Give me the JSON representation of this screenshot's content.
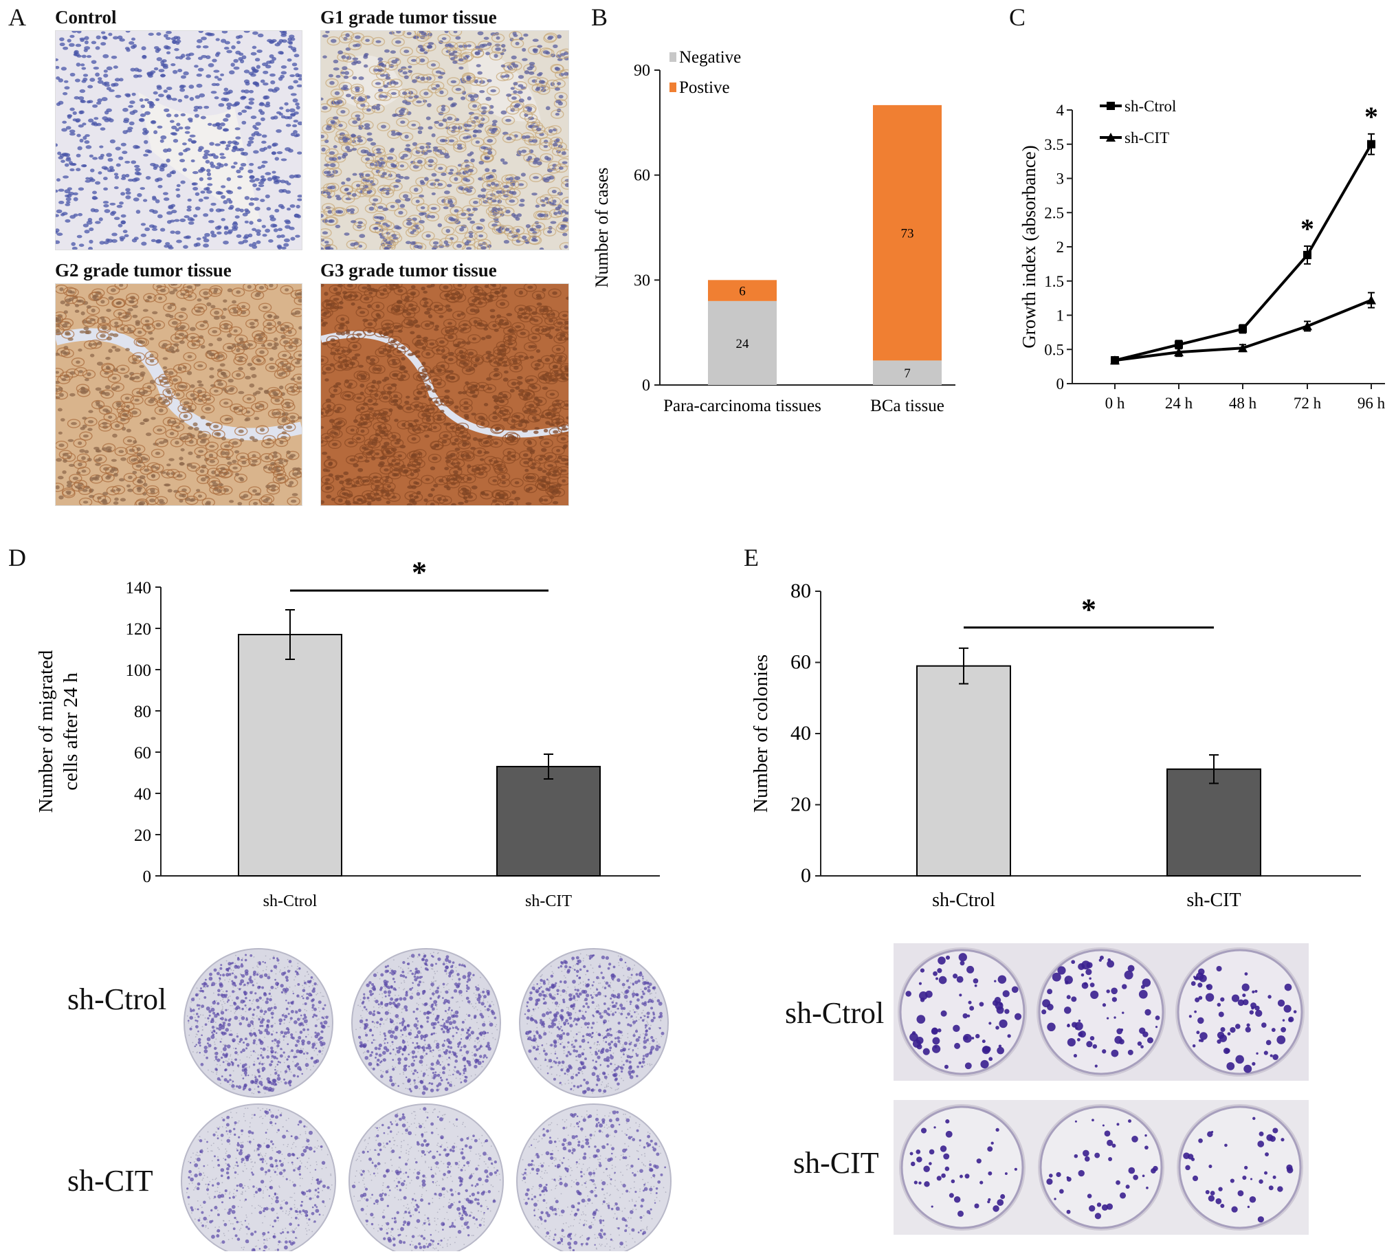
{
  "panels": {
    "A": {
      "letter": "A",
      "images": [
        {
          "caption": "Control",
          "stain": "negative"
        },
        {
          "caption": "G1 grade tumor tissue",
          "stain": "weak"
        },
        {
          "caption": "G2 grade tumor tissue",
          "stain": "moderate"
        },
        {
          "caption": "G3 grade tumor tissue",
          "stain": "strong"
        }
      ]
    },
    "B": {
      "letter": "B"
    },
    "C": {
      "letter": "C"
    },
    "D": {
      "letter": "D",
      "dish_labels": [
        "sh-Ctrol",
        "sh-CIT"
      ]
    },
    "E": {
      "letter": "E",
      "dish_labels": [
        "sh-Ctrol",
        "sh-CIT"
      ]
    }
  },
  "colors": {
    "negative": "#c8c8c8",
    "positive": "#f07f32",
    "bar_light": "#d3d3d3",
    "bar_dark": "#5a5a5a",
    "crystal_violet": "#3a1f8f"
  },
  "chart_data": [
    {
      "id": "B",
      "type": "bar",
      "stacked": true,
      "categories": [
        "Para-carcinoma tissues",
        "BCa tissue"
      ],
      "series": [
        {
          "name": "Negative",
          "values": [
            24,
            7
          ]
        },
        {
          "name": "Postive",
          "values": [
            6,
            73
          ]
        }
      ],
      "ylabel": "Number of cases",
      "ylim": [
        0,
        90
      ],
      "yticks": [
        "0",
        "30",
        "60",
        "90"
      ],
      "legend": "top-left"
    },
    {
      "id": "C",
      "type": "line",
      "x": [
        "0 h",
        "24 h",
        "48 h",
        "72 h",
        "96 h"
      ],
      "series": [
        {
          "name": "sh-Ctrol",
          "marker": "square",
          "values": [
            0.34,
            0.57,
            0.8,
            1.88,
            3.5
          ],
          "errors": [
            0.05,
            0.06,
            0.06,
            0.13,
            0.15
          ]
        },
        {
          "name": "sh-CIT",
          "marker": "triangle",
          "values": [
            0.34,
            0.46,
            0.52,
            0.84,
            1.22
          ],
          "errors": [
            0.05,
            0.06,
            0.05,
            0.07,
            0.11
          ]
        }
      ],
      "significance": [
        "",
        "",
        "",
        "*",
        "*"
      ],
      "ylabel": "Growth index (absorbance)",
      "ylim": [
        0,
        4
      ],
      "yticks": [
        "0",
        "0.5",
        "1",
        "1.5",
        "2",
        "2.5",
        "3",
        "3.5",
        "4"
      ],
      "legend": "top-left"
    },
    {
      "id": "D",
      "type": "bar",
      "categories": [
        "sh-Ctrol",
        "sh-CIT"
      ],
      "values": [
        117,
        53
      ],
      "errors": [
        12,
        6
      ],
      "ylabel_lines": [
        "Number of migrated",
        "cells after 24 h"
      ],
      "ylim": [
        0,
        140
      ],
      "yticks": [
        "0",
        "20",
        "40",
        "60",
        "80",
        "100",
        "120",
        "140"
      ],
      "significance": "*"
    },
    {
      "id": "E",
      "type": "bar",
      "categories": [
        "sh-Ctrol",
        "sh-CIT"
      ],
      "values": [
        59,
        30
      ],
      "errors": [
        5,
        4
      ],
      "ylabel": "Number of colonies",
      "ylim": [
        0,
        80
      ],
      "yticks": [
        "0",
        "20",
        "40",
        "60",
        "80"
      ],
      "significance": "*"
    }
  ]
}
